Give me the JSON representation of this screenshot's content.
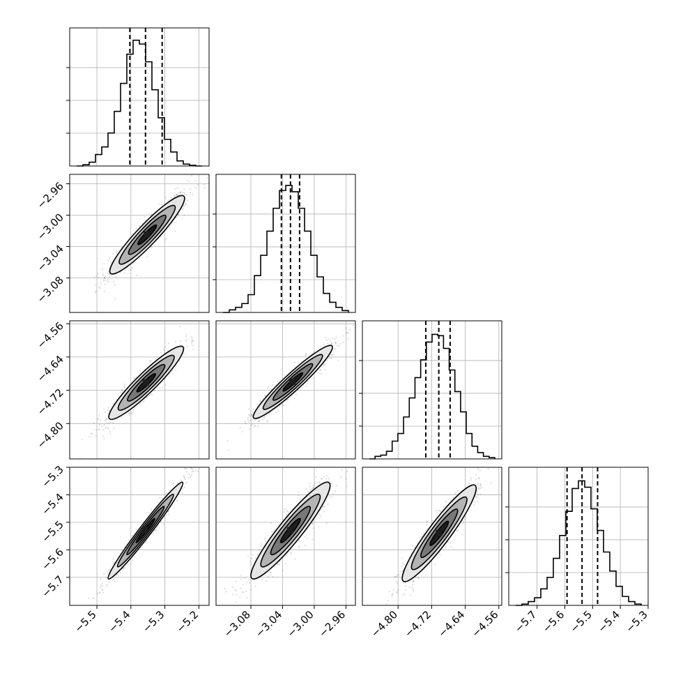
{
  "chart_data": {
    "type": "corner",
    "grid": true,
    "n_params": 4,
    "params": [
      {
        "axis_range": [
          -5.58,
          -5.17
        ],
        "ticks": [
          -5.5,
          -5.4,
          -5.3,
          -5.2
        ],
        "tick_labels": [
          "−5.5",
          "−5.4",
          "−5.3",
          "−5.2"
        ],
        "quantiles": [
          -5.403,
          -5.357,
          -5.308
        ],
        "hist": [
          0,
          0.01,
          0.03,
          0.09,
          0.15,
          0.26,
          0.43,
          0.65,
          0.88,
          0.99,
          0.96,
          0.82,
          0.6,
          0.38,
          0.21,
          0.11,
          0.04,
          0.015,
          0.005,
          0
        ]
      },
      {
        "axis_range": [
          -3.124,
          -2.948
        ],
        "ticks": [
          -3.08,
          -3.04,
          -3.0,
          -2.96
        ],
        "tick_labels": [
          "−3.08",
          "−3.04",
          "−3.00",
          "−2.96"
        ],
        "quantiles": [
          -3.0415,
          -3.03,
          -3.0185
        ],
        "hist": [
          0,
          0.02,
          0.04,
          0.07,
          0.14,
          0.29,
          0.45,
          0.64,
          0.82,
          0.96,
          1.0,
          0.95,
          0.82,
          0.64,
          0.45,
          0.28,
          0.15,
          0.08,
          0.04,
          0.015
        ]
      },
      {
        "axis_range": [
          -4.885,
          -4.553
        ],
        "ticks": [
          -4.8,
          -4.72,
          -4.64,
          -4.56
        ],
        "tick_labels": [
          "−4.80",
          "−4.72",
          "−4.64",
          "−4.56"
        ],
        "quantiles": [
          -4.734,
          -4.703,
          -4.676
        ],
        "hist": [
          0,
          0.02,
          0.03,
          0.06,
          0.14,
          0.2,
          0.33,
          0.48,
          0.64,
          0.78,
          0.92,
          0.98,
          0.97,
          0.87,
          0.7,
          0.53,
          0.37,
          0.2,
          0.1,
          0.05,
          0.02,
          0.01
        ]
      },
      {
        "axis_range": [
          -5.802,
          -5.3
        ],
        "ticks": [
          -5.7,
          -5.6,
          -5.5,
          -5.4,
          -5.3
        ],
        "tick_labels": [
          "−5.7",
          "−5.6",
          "−5.5",
          "−5.4",
          "−5.3"
        ],
        "quantiles": [
          -5.592,
          -5.538,
          -5.482
        ],
        "hist": [
          0,
          0.01,
          0.03,
          0.06,
          0.13,
          0.22,
          0.37,
          0.55,
          0.74,
          0.92,
          0.98,
          0.93,
          0.76,
          0.59,
          0.42,
          0.27,
          0.15,
          0.07,
          0.03,
          0.01
        ]
      }
    ],
    "pairs": [
      {
        "row": 1,
        "col": 0,
        "center": [
          -5.352,
          -3.025
        ],
        "sd": [
          0.055,
          0.025
        ],
        "rho": 0.93
      },
      {
        "row": 2,
        "col": 0,
        "center": [
          -5.355,
          -4.702
        ],
        "sd": [
          0.055,
          0.044
        ],
        "rho": 0.93
      },
      {
        "row": 2,
        "col": 1,
        "center": [
          -3.027,
          -4.7
        ],
        "sd": [
          0.025,
          0.044
        ],
        "rho": 0.95
      },
      {
        "row": 3,
        "col": 0,
        "center": [
          -5.357,
          -5.53
        ],
        "sd": [
          0.055,
          0.088
        ],
        "rho": 0.98
      },
      {
        "row": 3,
        "col": 1,
        "center": [
          -3.03,
          -5.53
        ],
        "sd": [
          0.025,
          0.088
        ],
        "rho": 0.93
      },
      {
        "row": 3,
        "col": 2,
        "center": [
          -4.702,
          -5.54
        ],
        "sd": [
          0.044,
          0.088
        ],
        "rho": 0.93
      }
    ],
    "contour_levels": [
      0.5,
      1.0,
      1.5,
      2.0
    ]
  },
  "colors": {
    "line": "#000000",
    "grid": "#b0b0b0",
    "points": "#000000",
    "fill_outer": "#e6e6e6",
    "fill_mid": "#b4b4b4",
    "fill_inner": "#787878",
    "fill_core": "#1e1e1e"
  }
}
